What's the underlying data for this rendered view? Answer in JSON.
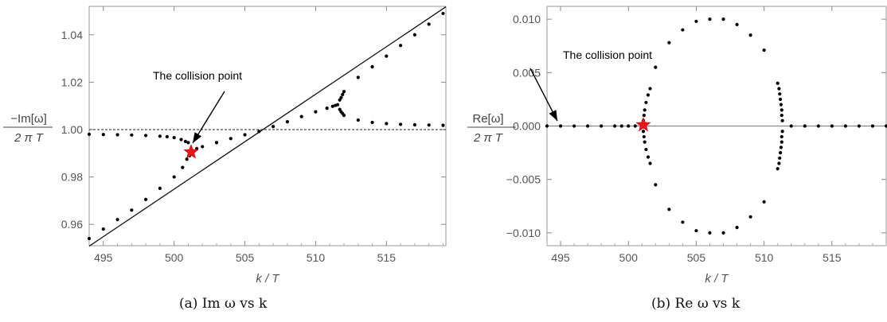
{
  "captions": [
    "(a) Im ω vs k",
    "(b) Re ω vs k"
  ],
  "chart_data": [
    {
      "type": "scatter",
      "title": "",
      "xlabel": "k / T",
      "ylabel_num": "−Im[ω]",
      "ylabel_den": "2 π T",
      "xlim": [
        494,
        519.2
      ],
      "ylim": [
        0.951,
        1.052
      ],
      "x_ticks": [
        495,
        500,
        505,
        510,
        515
      ],
      "x_tick_labels": [
        "495",
        "500",
        "505",
        "510",
        "515"
      ],
      "y_ticks": [
        0.96,
        0.98,
        1.0,
        1.02,
        1.04
      ],
      "y_tick_labels": [
        "0.96",
        "0.98",
        "1.00",
        "1.02",
        "1.04"
      ],
      "reference_lines": [
        {
          "kind": "dashed",
          "y": 1.0
        },
        {
          "kind": "solid",
          "points": [
            [
              494,
              0.9508
            ],
            [
              519.2,
              1.0518
            ]
          ]
        }
      ],
      "series": [
        {
          "points": [
            [
              494.0,
              0.998
            ],
            [
              495.0,
              0.9979
            ],
            [
              496.0,
              0.9978
            ],
            [
              497.0,
              0.9977
            ],
            [
              498.0,
              0.9975
            ],
            [
              499.0,
              0.9972
            ],
            [
              499.5,
              0.997
            ],
            [
              500.0,
              0.9966
            ],
            [
              500.5,
              0.9958
            ],
            [
              500.8,
              0.995
            ],
            [
              501.0,
              0.9945
            ],
            [
              494.0,
              0.954
            ],
            [
              495.0,
              0.958
            ],
            [
              496.0,
              0.962
            ],
            [
              497.0,
              0.966
            ],
            [
              498.0,
              0.9705
            ],
            [
              499.0,
              0.9752
            ],
            [
              500.0,
              0.98
            ],
            [
              500.6,
              0.984
            ],
            [
              500.9,
              0.9875
            ],
            [
              501.1,
              0.989
            ],
            [
              501.3,
              0.9905
            ],
            [
              501.6,
              0.992
            ],
            [
              502.0,
              0.9928
            ],
            [
              503.0,
              0.9945
            ],
            [
              504.0,
              0.9962
            ],
            [
              505.0,
              0.9978
            ],
            [
              506.0,
              0.9992
            ],
            [
              507.0,
              1.0013
            ],
            [
              508.0,
              1.0033
            ],
            [
              509.0,
              1.0055
            ],
            [
              510.0,
              1.0075
            ],
            [
              510.8,
              1.009
            ],
            [
              511.2,
              1.0098
            ],
            [
              511.4,
              1.0102
            ],
            [
              511.55,
              1.0105
            ],
            [
              511.7,
              1.0125
            ],
            [
              511.8,
              1.0135
            ],
            [
              511.9,
              1.0148
            ],
            [
              512.0,
              1.016
            ],
            [
              513.0,
              1.022
            ],
            [
              514.0,
              1.0265
            ],
            [
              515.0,
              1.031
            ],
            [
              516.0,
              1.0355
            ],
            [
              517.0,
              1.04
            ],
            [
              518.0,
              1.0445
            ],
            [
              519.0,
              1.049
            ],
            [
              511.7,
              1.0085
            ],
            [
              511.8,
              1.0075
            ],
            [
              511.9,
              1.0068
            ],
            [
              512.0,
              1.006
            ],
            [
              513.0,
              1.004
            ],
            [
              514.0,
              1.003
            ],
            [
              515.0,
              1.0025
            ],
            [
              516.0,
              1.0022
            ],
            [
              517.0,
              1.002
            ],
            [
              518.0,
              1.0019
            ],
            [
              519.0,
              1.0018
            ]
          ]
        }
      ],
      "marker": {
        "label": "The collision point",
        "point": [
          501.2,
          0.9905
        ],
        "color": "#e8141e"
      }
    },
    {
      "type": "scatter",
      "title": "",
      "xlabel": "k / T",
      "ylabel_num": "Re[ω]",
      "ylabel_den": "2 π T",
      "xlim": [
        494,
        519
      ],
      "ylim": [
        -0.0112,
        0.0112
      ],
      "x_ticks": [
        495,
        500,
        505,
        510,
        515
      ],
      "x_tick_labels": [
        "495",
        "500",
        "505",
        "510",
        "515"
      ],
      "y_ticks": [
        0.01,
        0.005,
        0.0,
        -0.005,
        -0.01
      ],
      "y_tick_labels": [
        "0.010",
        "0.005",
        "0.000",
        "−0.005",
        "−0.010"
      ],
      "reference_lines": [
        {
          "kind": "solid",
          "y": 0.0
        }
      ],
      "series": [
        {
          "points": [
            [
              494.0,
              0.0
            ],
            [
              495.0,
              0.0
            ],
            [
              496.0,
              0.0
            ],
            [
              497.0,
              0.0
            ],
            [
              498.0,
              0.0
            ],
            [
              499.0,
              0.0
            ],
            [
              499.5,
              0.0
            ],
            [
              500.0,
              0.0
            ],
            [
              500.5,
              0.0
            ],
            [
              501.0,
              0.0
            ],
            [
              512.0,
              0.0
            ],
            [
              513.0,
              0.0
            ],
            [
              514.0,
              0.0
            ],
            [
              515.0,
              0.0
            ],
            [
              516.0,
              0.0
            ],
            [
              517.0,
              0.0
            ],
            [
              518.0,
              0.0
            ],
            [
              519.0,
              0.0
            ],
            [
              501.1,
              0.0005
            ],
            [
              501.15,
              0.001
            ],
            [
              501.2,
              0.0015
            ],
            [
              501.3,
              0.0022
            ],
            [
              501.45,
              0.0029
            ],
            [
              501.6,
              0.0035
            ],
            [
              502.0,
              0.0055
            ],
            [
              503.0,
              0.0078
            ],
            [
              504.0,
              0.009
            ],
            [
              505.0,
              0.0098
            ],
            [
              506.0,
              0.01
            ],
            [
              507.0,
              0.01
            ],
            [
              508.0,
              0.0095
            ],
            [
              509.0,
              0.0085
            ],
            [
              510.0,
              0.0071
            ],
            [
              511.0,
              0.004
            ],
            [
              511.1,
              0.0035
            ],
            [
              511.15,
              0.003
            ],
            [
              511.2,
              0.0025
            ],
            [
              511.25,
              0.002
            ],
            [
              511.3,
              0.0015
            ],
            [
              511.3,
              0.001
            ],
            [
              511.35,
              0.0005
            ],
            [
              501.1,
              -0.0005
            ],
            [
              501.15,
              -0.001
            ],
            [
              501.2,
              -0.0015
            ],
            [
              501.3,
              -0.0022
            ],
            [
              501.45,
              -0.0029
            ],
            [
              501.6,
              -0.0035
            ],
            [
              502.0,
              -0.0055
            ],
            [
              503.0,
              -0.0078
            ],
            [
              504.0,
              -0.009
            ],
            [
              505.0,
              -0.0098
            ],
            [
              506.0,
              -0.01
            ],
            [
              507.0,
              -0.01
            ],
            [
              508.0,
              -0.0095
            ],
            [
              509.0,
              -0.0085
            ],
            [
              510.0,
              -0.0071
            ],
            [
              511.0,
              -0.004
            ],
            [
              511.1,
              -0.0035
            ],
            [
              511.15,
              -0.003
            ],
            [
              511.2,
              -0.0025
            ],
            [
              511.25,
              -0.002
            ],
            [
              511.3,
              -0.0015
            ],
            [
              511.3,
              -0.001
            ],
            [
              511.35,
              -0.0005
            ]
          ]
        }
      ],
      "marker": {
        "label": "The collision point",
        "point": [
          501.1,
          0.0001
        ],
        "color": "#e8141e"
      }
    }
  ]
}
